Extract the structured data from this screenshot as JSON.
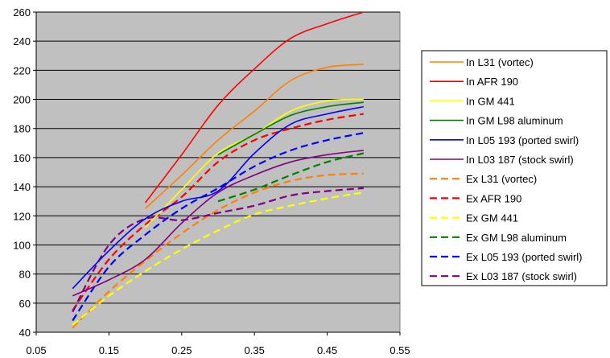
{
  "chart_data": {
    "type": "line",
    "title": "",
    "xlabel": "",
    "ylabel": "",
    "xlim": [
      0.05,
      0.55
    ],
    "ylim": [
      40,
      260
    ],
    "xticks": [
      "0.05",
      "0.15",
      "0.25",
      "0.35",
      "0.45",
      "0.55"
    ],
    "yticks": [
      "40",
      "60",
      "80",
      "100",
      "120",
      "140",
      "160",
      "180",
      "200",
      "220",
      "240",
      "260"
    ],
    "grid": "horizontal",
    "plot_background": "#C0C0C0",
    "legend_position": "right",
    "series": [
      {
        "name": "In L31 (vortec)",
        "color": "#FF8000",
        "style": "solid",
        "x": [
          0.2,
          0.25,
          0.3,
          0.35,
          0.4,
          0.45,
          0.5
        ],
        "y": [
          125,
          148,
          172,
          192,
          213,
          222,
          224
        ]
      },
      {
        "name": "In AFR 190",
        "color": "#FF0000",
        "style": "solid",
        "x": [
          0.2,
          0.25,
          0.3,
          0.35,
          0.4,
          0.45,
          0.5
        ],
        "y": [
          129,
          162,
          196,
          221,
          242,
          252,
          260
        ]
      },
      {
        "name": "In GM 441",
        "color": "#FFFF00",
        "style": "solid",
        "x": [
          0.2,
          0.25,
          0.3,
          0.35,
          0.4,
          0.45,
          0.5
        ],
        "y": [
          112,
          138,
          163,
          176,
          192,
          199,
          200
        ]
      },
      {
        "name": "In GM L98 aluminum",
        "color": "#008000",
        "style": "solid",
        "x": [
          0.3,
          0.35,
          0.4,
          0.45,
          0.5
        ],
        "y": [
          162,
          176,
          189,
          195,
          198
        ]
      },
      {
        "name": "In L05 193 (ported swirl)",
        "color": "#0000FF",
        "style": "solid",
        "x": [
          0.1,
          0.15,
          0.2,
          0.25,
          0.3,
          0.35,
          0.4,
          0.45,
          0.5
        ],
        "y": [
          70,
          96,
          118,
          130,
          137,
          163,
          183,
          190,
          195
        ]
      },
      {
        "name": "In L03 187 (stock swirl)",
        "color": "#800080",
        "style": "solid",
        "x": [
          0.1,
          0.15,
          0.2,
          0.25,
          0.3,
          0.35,
          0.4,
          0.45,
          0.5
        ],
        "y": [
          65,
          76,
          90,
          115,
          136,
          148,
          157,
          162,
          165
        ]
      },
      {
        "name": "Ex L31 (vortec)",
        "color": "#FF8000",
        "style": "dashed",
        "x": [
          0.1,
          0.15,
          0.2,
          0.25,
          0.3,
          0.35,
          0.4,
          0.45,
          0.5
        ],
        "y": [
          43,
          68,
          89,
          108,
          124,
          136,
          144,
          148,
          149
        ]
      },
      {
        "name": "Ex AFR 190",
        "color": "#FF0000",
        "style": "dashed",
        "x": [
          0.1,
          0.15,
          0.2,
          0.25,
          0.3,
          0.35,
          0.4,
          0.45,
          0.5
        ],
        "y": [
          55,
          90,
          114,
          133,
          157,
          172,
          180,
          186,
          190
        ]
      },
      {
        "name": "Ex GM 441",
        "color": "#FFFF00",
        "style": "dashed",
        "x": [
          0.1,
          0.15,
          0.2,
          0.25,
          0.3,
          0.35,
          0.4,
          0.45,
          0.5
        ],
        "y": [
          45,
          65,
          82,
          97,
          110,
          121,
          127,
          132,
          136
        ]
      },
      {
        "name": "Ex GM L98 aluminum",
        "color": "#008000",
        "style": "dashed",
        "x": [
          0.3,
          0.35,
          0.4,
          0.45,
          0.5
        ],
        "y": [
          130,
          138,
          148,
          157,
          163
        ]
      },
      {
        "name": "Ex L05 193 (ported swirl)",
        "color": "#0000FF",
        "style": "dashed",
        "x": [
          0.1,
          0.15,
          0.2,
          0.25,
          0.3,
          0.35,
          0.4,
          0.45,
          0.5
        ],
        "y": [
          48,
          85,
          107,
          125,
          139,
          154,
          165,
          172,
          177
        ]
      },
      {
        "name": "Ex L03 187 (stock swirl)",
        "color": "#800080",
        "style": "dashed",
        "x": [
          0.1,
          0.15,
          0.2,
          0.25,
          0.3,
          0.35,
          0.4,
          0.45,
          0.5
        ],
        "y": [
          54,
          100,
          118,
          117,
          122,
          127,
          134,
          137,
          139
        ]
      }
    ]
  }
}
